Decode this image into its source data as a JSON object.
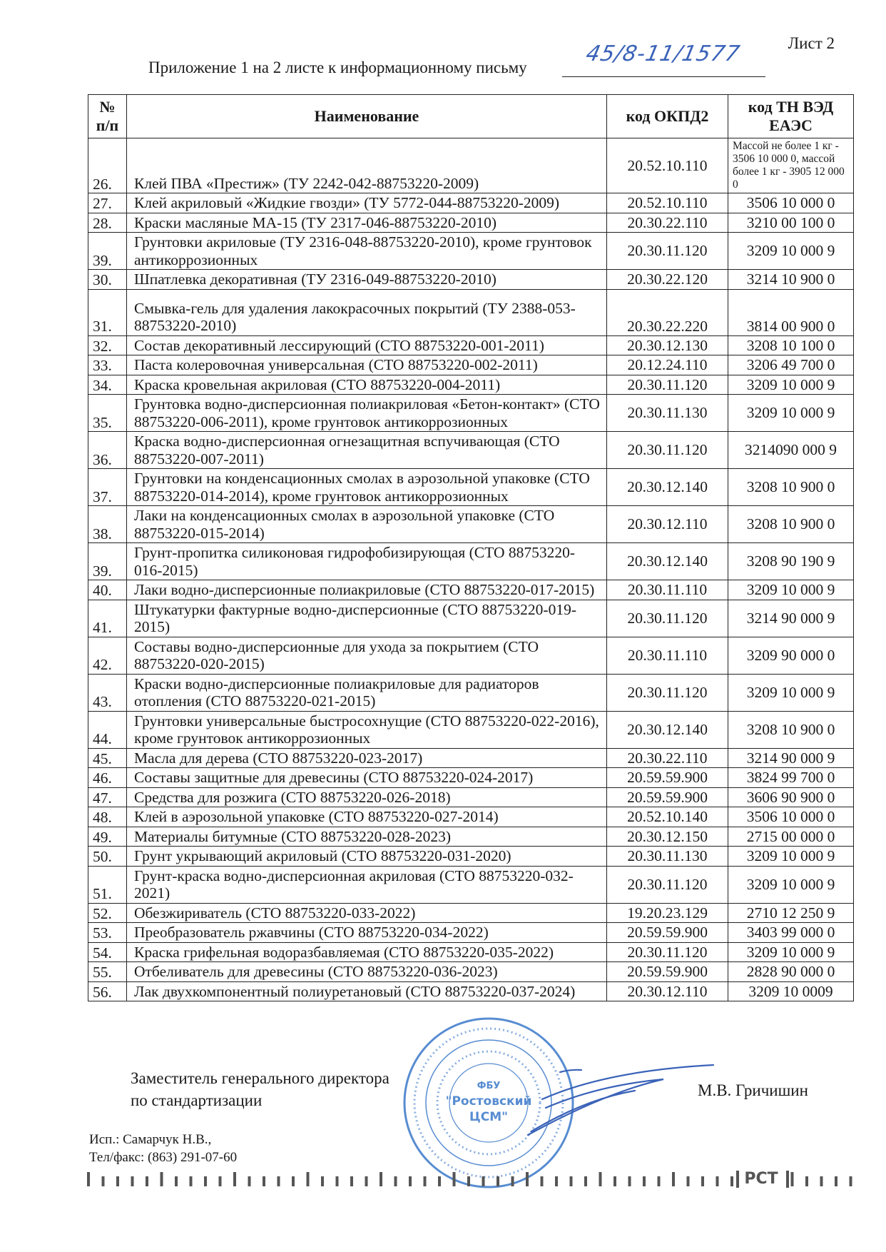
{
  "header": {
    "sheet_label": "Лист 2",
    "title": "Приложение 1 на 2 листе к информационному письму",
    "letter_number_handwritten": "45/8-11/1577"
  },
  "table": {
    "columns": [
      "№ п/п",
      "Наименование",
      "код ОКПД2",
      "код ТН ВЭД ЕАЭС"
    ],
    "rows": [
      {
        "num": "26.",
        "name": "Клей ПВА «Престиж» (ТУ 2242-042-88753220-2009)",
        "okpd2": "20.52.10.110",
        "tnved": "Массой не более 1 кг - 3506 10 000 0, массой более 1 кг - 3905 12 000 0"
      },
      {
        "num": "27.",
        "name": "Клей акриловый «Жидкие гвозди» (ТУ 5772-044-88753220-2009)",
        "okpd2": "20.52.10.110",
        "tnved": "3506 10 000 0"
      },
      {
        "num": "28.",
        "name": "Краски масляные МА-15 (ТУ 2317-046-88753220-2010)",
        "okpd2": "20.30.22.110",
        "tnved": "3210 00 100 0"
      },
      {
        "num": "39.",
        "name": "Грунтовки акриловые (ТУ 2316-048-88753220-2010), кроме грунтовок антикоррозионных",
        "okpd2": "20.30.11.120",
        "tnved": "3209 10 000 9"
      },
      {
        "num": "30.",
        "name": "Шпатлевка декоративная  (ТУ 2316-049-88753220-2010)",
        "okpd2": "20.30.22.120",
        "tnved": "3214 10 900 0"
      },
      {
        "num": "31.",
        "name": "Смывка-гель для удаления лакокрасочных покрытий (ТУ 2388-053-88753220-2010)",
        "okpd2": "20.30.22.220",
        "tnved": "3814 00 900 0"
      },
      {
        "num": "32.",
        "name": "Состав декоративный лессирующий (СТО 88753220-001-2011)",
        "okpd2": "20.30.12.130",
        "tnved": "3208 10 100 0"
      },
      {
        "num": "33.",
        "name": "Паста колеровочная универсальная (СТО 88753220-002-2011)",
        "okpd2": "20.12.24.110",
        "tnved": "3206 49 700 0"
      },
      {
        "num": "34.",
        "name": "Краска кровельная акриловая (СТО 88753220-004-2011)",
        "okpd2": "20.30.11.120",
        "tnved": "3209 10 000 9"
      },
      {
        "num": "35.",
        "name": "Грунтовка водно-дисперсионная полиакриловая «Бетон-контакт» (СТО 88753220-006-2011), кроме грунтовок антикоррозионных",
        "okpd2": "20.30.11.130",
        "tnved": "3209 10 000 9"
      },
      {
        "num": "36.",
        "name": "Краска водно-дисперсионная огнезащитная вспучивающая (СТО 88753220-007-2011)",
        "okpd2": "20.30.11.120",
        "tnved": "3214090 000 9"
      },
      {
        "num": "37.",
        "name": "Грунтовки на конденсационных смолах в аэрозольной упаковке (СТО 88753220-014-2014), кроме грунтовок антикоррозионных",
        "okpd2": "20.30.12.140",
        "tnved": "3208 10 900 0"
      },
      {
        "num": "38.",
        "name": "Лаки на конденсационных смолах в аэрозольной упаковке (СТО 88753220-015-2014)",
        "okpd2": "20.30.12.110",
        "tnved": "3208 10 900 0"
      },
      {
        "num": "39.",
        "name": "Грунт-пропитка силиконовая гидрофобизирующая (СТО 88753220-016-2015)",
        "okpd2": "20.30.12.140",
        "tnved": "3208 90 190 9"
      },
      {
        "num": "40.",
        "name": "Лаки водно-дисперсионные полиакриловые (СТО 88753220-017-2015)",
        "okpd2": "20.30.11.110",
        "tnved": "3209 10 000 9"
      },
      {
        "num": "41.",
        "name": "Штукатурки фактурные водно-дисперсионные (СТО 88753220-019-2015)",
        "okpd2": "20.30.11.120",
        "tnved": "3214 90 000 9"
      },
      {
        "num": "42.",
        "name": "Составы водно-дисперсионные для ухода за покрытием (СТО 88753220-020-2015)",
        "okpd2": "20.30.11.110",
        "tnved": "3209 90 000 0"
      },
      {
        "num": "43.",
        "name": "Краски водно-дисперсионные полиакриловые для радиаторов отопления (СТО 88753220-021-2015)",
        "okpd2": "20.30.11.120",
        "tnved": "3209 10 000 9"
      },
      {
        "num": "44.",
        "name": "Грунтовки универсальные быстросохнущие (СТО 88753220-022-2016), кроме грунтовок антикоррозионных",
        "okpd2": "20.30.12.140",
        "tnved": "3208 10 900 0"
      },
      {
        "num": "45.",
        "name": "Масла для дерева (СТО 88753220-023-2017)",
        "okpd2": "20.30.22.110",
        "tnved": "3214 90 000 9"
      },
      {
        "num": "46.",
        "name": "Составы защитные для древесины (СТО 88753220-024-2017)",
        "okpd2": "20.59.59.900",
        "tnved": "3824 99 700 0"
      },
      {
        "num": "47.",
        "name": "Средства для розжига (СТО 88753220-026-2018)",
        "okpd2": "20.59.59.900",
        "tnved": "3606 90 900 0"
      },
      {
        "num": "48.",
        "name": "Клей в аэрозольной упаковке (СТО 88753220-027-2014)",
        "okpd2": "20.52.10.140",
        "tnved": "3506 10 000 0"
      },
      {
        "num": "49.",
        "name": "Материалы битумные (СТО 88753220-028-2023)",
        "okpd2": "20.30.12.150",
        "tnved": "2715 00 000 0"
      },
      {
        "num": "50.",
        "name": "Грунт укрывающий акриловый (СТО 88753220-031-2020)",
        "okpd2": "20.30.11.130",
        "tnved": "3209 10 000 9"
      },
      {
        "num": "51.",
        "name": "Грунт-краска водно-дисперсионная акриловая (СТО 88753220-032-2021)",
        "okpd2": "20.30.11.120",
        "tnved": "3209 10 000 9"
      },
      {
        "num": "52.",
        "name": "Обезжириватель (СТО 88753220-033-2022)",
        "okpd2": "19.20.23.129",
        "tnved": "2710 12 250 9"
      },
      {
        "num": "53.",
        "name": "Преобразователь ржавчины (СТО 88753220-034-2022)",
        "okpd2": "20.59.59.900",
        "tnved": "3403 99 000 0"
      },
      {
        "num": "54.",
        "name": "Краска грифельная водоразбавляемая (СТО 88753220-035-2022)",
        "okpd2": "20.30.11.120",
        "tnved": "3209 10 000 9"
      },
      {
        "num": "55.",
        "name": "Отбеливатель для древесины (СТО 88753220-036-2023)",
        "okpd2": "20.59.59.900",
        "tnved": "2828 90 000 0"
      },
      {
        "num": "56.",
        "name": "Лак двухкомпонентный полиуретановый (СТО 88753220-037-2024)",
        "okpd2": "20.30.12.110",
        "tnved": "3209 10 0009"
      }
    ]
  },
  "signature_block": {
    "position_line1": "Заместитель генерального директора",
    "position_line2": "по стандартизации",
    "signatory": "М.В. Гричишин"
  },
  "executor": {
    "name": "Исп.: Самарчук Н.В.,",
    "phone": "Тел/факс: (863) 291-07-60"
  },
  "stamp": {
    "center_text": "ФБУ «Ростовский ЦСМ»",
    "color": "#3a78c9"
  },
  "footer_logo": "РСТ",
  "colors": {
    "ink": "#1a1a1a",
    "handwriting": "#3a62b8",
    "stamp": "#3a78c9"
  }
}
